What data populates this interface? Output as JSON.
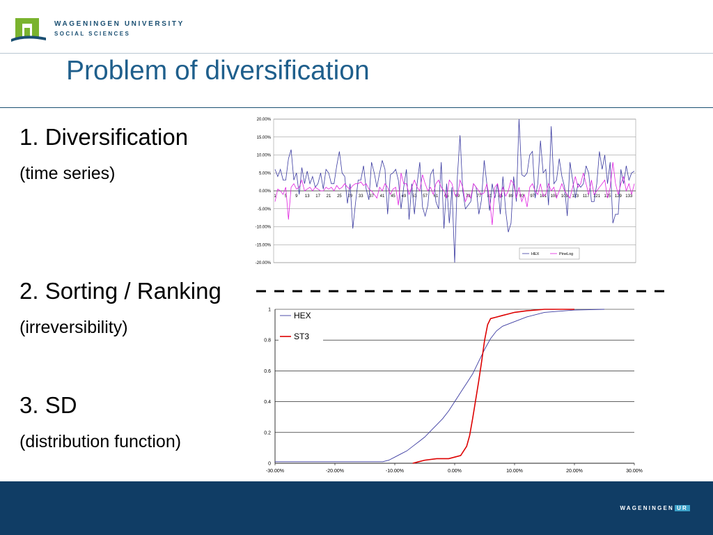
{
  "header": {
    "university": "WAGENINGEN UNIVERSITY",
    "department": "SOCIAL SCIENCES"
  },
  "title": "Problem of diversification",
  "bullets": [
    {
      "main": "1. Diversification",
      "sub": "(time series)"
    },
    {
      "main": "2. Sorting / Ranking",
      "sub": "(irreversibility)"
    },
    {
      "main": "3. SD",
      "sub": "(distribution function)"
    }
  ],
  "colors": {
    "title": "#1f5f8c",
    "footer": "#103d65",
    "hex_series": "#3a3aa0",
    "pinelog_series": "#e020e0",
    "st3_series": "#dd0000"
  },
  "footer": {
    "brand": "WAGENINGEN",
    "brand_suffix": "UR"
  },
  "chart_data": [
    {
      "type": "line",
      "title": "",
      "ylim": [
        -0.2,
        0.2
      ],
      "y_ticks": [
        "20.00%",
        "15.00%",
        "10.00%",
        "5.00%",
        "0.00%",
        "-5.00%",
        "-10.00%",
        "-15.00%",
        "-20.00%"
      ],
      "x_ticks": [
        "1",
        "5",
        "9",
        "13",
        "17",
        "21",
        "25",
        "29",
        "33",
        "37",
        "41",
        "45",
        "49",
        "53",
        "57",
        "61",
        "65",
        "69",
        "73",
        "77",
        "81",
        "85",
        "89",
        "93",
        "97",
        "101",
        "105",
        "109",
        "113",
        "117",
        "121",
        "125",
        "129",
        "133"
      ],
      "grid": true,
      "legend_position": "bottom-right",
      "series": [
        {
          "name": "HEX",
          "values": [
            0.06,
            0.04,
            0.06,
            0.03,
            0.03,
            0.09,
            0.115,
            0.03,
            0.05,
            -0.01,
            0.065,
            0.02,
            0.055,
            0.02,
            0.04,
            0.01,
            0.02,
            0.05,
            0.005,
            0.06,
            0.05,
            0.02,
            0.02,
            0.07,
            0.11,
            0.05,
            0.04,
            -0.035,
            0.02,
            -0.105,
            -0.035,
            0.03,
            0.03,
            0.07,
            0.005,
            -0.025,
            0.08,
            0.05,
            0.01,
            0.05,
            0.085,
            0.06,
            -0.065,
            0.045,
            0.05,
            0.06,
            0.03,
            -0.05,
            0.01,
            0.06,
            -0.08,
            0.02,
            -0.065,
            0.02,
            0.08,
            -0.045,
            -0.07,
            -0.04,
            0.045,
            0.06,
            -0.03,
            -0.05,
            0.08,
            -0.105,
            0.02,
            -0.09,
            0.01,
            -0.2,
            0.04,
            0.155,
            0.0,
            -0.05,
            -0.04,
            -0.03,
            0.02,
            0.01,
            -0.065,
            -0.025,
            0.085,
            0.02,
            -0.055,
            0.02,
            -0.02,
            0.02,
            -0.065,
            0.04,
            -0.055,
            -0.115,
            -0.09,
            0.04,
            -0.03,
            0.2,
            0.045,
            0.04,
            0.05,
            0.1,
            0.11,
            -0.02,
            0.02,
            0.14,
            0.05,
            0.06,
            -0.04,
            0.18,
            0.02,
            0.03,
            0.09,
            0.04,
            0.01,
            -0.07,
            0.08,
            0.03,
            -0.02,
            0.02,
            0.01,
            0.02,
            0.07,
            0.05,
            -0.03,
            -0.03,
            0.02,
            0.11,
            0.06,
            0.1,
            0.02,
            0.08,
            -0.09,
            -0.065,
            -0.065,
            0.06,
            0.02,
            0.07,
            0.03,
            0.05,
            0.055
          ]
        },
        {
          "name": "PineLog",
          "values": [
            -0.03,
            0.005,
            0.0,
            -0.01,
            0.01,
            -0.08,
            0.01,
            0.02,
            0.005,
            0.01,
            0.03,
            0.0,
            0.005,
            0.01,
            0.0,
            0.01,
            0.005,
            0.0,
            0.0,
            0.01,
            0.005,
            0.01,
            0.0,
            0.015,
            0.005,
            0.01,
            0.02,
            0.01,
            0.005,
            0.015,
            0.02,
            0.02,
            0.025,
            0.015,
            0.02,
            0.005,
            0.0,
            -0.01,
            -0.02,
            0.01,
            0.0,
            0.02,
            0.01,
            -0.01,
            0.005,
            0.01,
            -0.04,
            0.05,
            0.02,
            0.02,
            -0.01,
            0.01,
            0.03,
            0.01,
            0.0,
            0.045,
            0.02,
            0.0,
            0.01,
            -0.01,
            0.02,
            0.03,
            0.01,
            0.0,
            -0.02,
            0.03,
            0.02,
            -0.01,
            -0.015,
            0.03,
            0.01,
            -0.03,
            -0.01,
            -0.02,
            0.02,
            0.01,
            0.0,
            -0.01,
            -0.005,
            0.02,
            -0.02,
            -0.095,
            0.01,
            0.02,
            -0.02,
            0.01,
            -0.015,
            0.0,
            0.03,
            0.02,
            -0.02,
            0.01,
            -0.03,
            -0.01,
            -0.045,
            0.01,
            0.02,
            0.0,
            -0.01,
            0.02,
            -0.015,
            -0.01,
            0.02,
            0.0,
            0.01,
            -0.02,
            0.0,
            0.02,
            0.0,
            -0.01,
            -0.02,
            0.01,
            0.04,
            0.01,
            0.02,
            0.05,
            0.02,
            -0.01,
            0.03,
            -0.01,
            0.0,
            0.01,
            0.02,
            0.03,
            -0.02,
            0.01,
            0.08,
            0.02,
            -0.01,
            0.02,
            0.04,
            0.0,
            0.02,
            -0.01,
            0.02
          ]
        }
      ]
    },
    {
      "type": "line",
      "title": "",
      "xlim": [
        -0.3,
        0.3
      ],
      "ylim": [
        0,
        1
      ],
      "x_ticks": [
        "-30.00%",
        "-20.00%",
        "-10.00%",
        "0.00%",
        "10.00%",
        "20.00%",
        "30.00%"
      ],
      "y_ticks": [
        "0",
        "0.2",
        "0.4",
        "0.6",
        "0.8",
        "1"
      ],
      "grid": true,
      "legend_position": "top-left",
      "series": [
        {
          "name": "HEX",
          "x": [
            -0.3,
            -0.12,
            -0.11,
            -0.1,
            -0.09,
            -0.08,
            -0.07,
            -0.06,
            -0.05,
            -0.04,
            -0.03,
            -0.02,
            -0.01,
            0.0,
            0.01,
            0.02,
            0.03,
            0.04,
            0.05,
            0.06,
            0.07,
            0.08,
            0.1,
            0.12,
            0.15,
            0.2,
            0.25
          ],
          "values": [
            0.01,
            0.01,
            0.02,
            0.04,
            0.06,
            0.08,
            0.11,
            0.14,
            0.17,
            0.21,
            0.25,
            0.29,
            0.34,
            0.4,
            0.46,
            0.52,
            0.58,
            0.66,
            0.74,
            0.81,
            0.86,
            0.89,
            0.92,
            0.95,
            0.98,
            0.995,
            1.0
          ]
        },
        {
          "name": "ST3",
          "x": [
            -0.07,
            -0.06,
            -0.05,
            -0.03,
            -0.01,
            0.0,
            0.01,
            0.02,
            0.025,
            0.03,
            0.035,
            0.04,
            0.045,
            0.05,
            0.055,
            0.06,
            0.07,
            0.08,
            0.09,
            0.1,
            0.12,
            0.15,
            0.2
          ],
          "values": [
            0.0,
            0.01,
            0.02,
            0.03,
            0.03,
            0.04,
            0.05,
            0.11,
            0.18,
            0.29,
            0.41,
            0.53,
            0.66,
            0.8,
            0.9,
            0.94,
            0.95,
            0.96,
            0.97,
            0.98,
            0.99,
            1.0,
            1.0
          ]
        }
      ]
    }
  ]
}
